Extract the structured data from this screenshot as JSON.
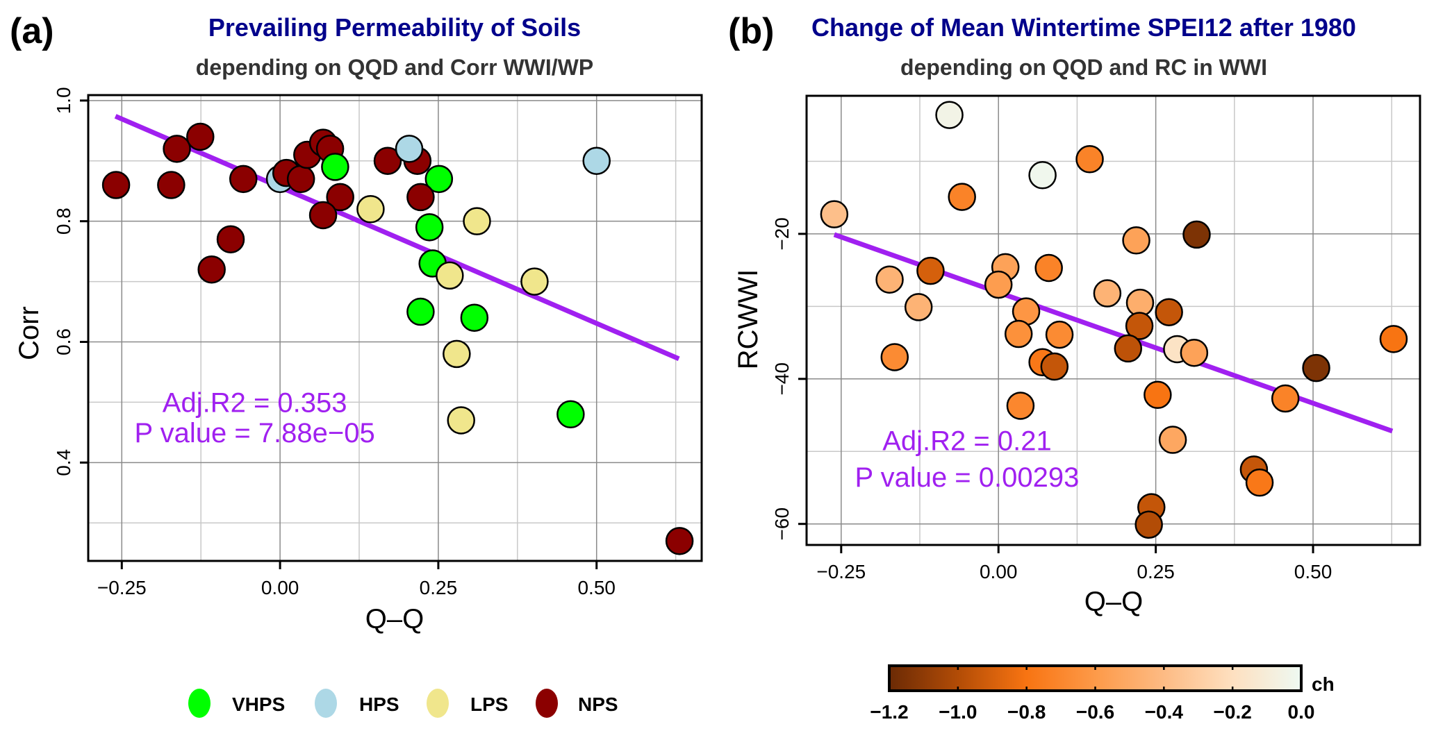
{
  "chart_data": [
    {
      "type": "scatter",
      "panel_label": "(a)",
      "title": "Prevailing Permeability of Soils",
      "subtitle": "depending on QQD and Corr WWI/WP",
      "xlabel": "Q–Q",
      "ylabel": "Corr",
      "xlim": [
        -0.303,
        0.666
      ],
      "ylim": [
        0.237,
        1.009
      ],
      "xticks": [
        -0.25,
        0.0,
        0.25,
        0.5
      ],
      "xtick_labels": [
        "−0.25",
        "0.00",
        "0.25",
        "0.50"
      ],
      "xgrid_minor": [
        -0.125,
        0.125,
        0.375,
        0.625
      ],
      "yticks": [
        0.4,
        0.6,
        0.8,
        1.0
      ],
      "ytick_labels": [
        "0.4",
        "0.6",
        "0.8",
        "1.0"
      ],
      "ygrid_minor": [
        0.3,
        0.5,
        0.7,
        0.9
      ],
      "grid": true,
      "regression": {
        "x": [
          -0.26,
          0.63
        ],
        "y": [
          0.974,
          0.572
        ],
        "color": "#a020f0"
      },
      "annotations": [
        "Adj.R2 = 0.353",
        "P value = 7.88e−05"
      ],
      "annotation_anchor": {
        "x": -0.04,
        "y": [
          0.5,
          0.45
        ]
      },
      "legend": {
        "placement": "bottom",
        "entries": [
          {
            "label": "VHPS",
            "color": "#00ff00"
          },
          {
            "label": "HPS",
            "color": "#add8e6"
          },
          {
            "label": "LPS",
            "color": "#f0e68c"
          },
          {
            "label": "NPS",
            "color": "#8b0000"
          }
        ]
      },
      "series": [
        {
          "name": "NPS",
          "color": "#8b0000",
          "points": [
            [
              -0.259,
              0.86
            ],
            [
              -0.172,
              0.86
            ],
            [
              -0.163,
              0.92
            ],
            [
              -0.126,
              0.94
            ],
            [
              -0.058,
              0.87
            ],
            [
              -0.078,
              0.77
            ],
            [
              -0.108,
              0.72
            ],
            [
              0.01,
              0.88
            ],
            [
              0.033,
              0.87
            ],
            [
              0.043,
              0.91
            ],
            [
              0.068,
              0.93
            ],
            [
              0.079,
              0.92
            ],
            [
              0.095,
              0.84
            ],
            [
              0.068,
              0.81
            ],
            [
              0.17,
              0.9
            ],
            [
              0.217,
              0.9
            ],
            [
              0.222,
              0.84
            ],
            [
              0.631,
              0.27
            ]
          ]
        },
        {
          "name": "HPS",
          "color": "#add8e6",
          "points": [
            [
              0.0,
              0.87
            ],
            [
              0.204,
              0.92
            ],
            [
              0.5,
              0.9
            ]
          ]
        },
        {
          "name": "LPS",
          "color": "#f0e68c",
          "points": [
            [
              0.143,
              0.82
            ],
            [
              0.311,
              0.8
            ],
            [
              0.268,
              0.71
            ],
            [
              0.402,
              0.7
            ],
            [
              0.279,
              0.58
            ],
            [
              0.286,
              0.47
            ]
          ]
        },
        {
          "name": "VHPS",
          "color": "#00ff00",
          "points": [
            [
              0.087,
              0.89
            ],
            [
              0.251,
              0.87
            ],
            [
              0.236,
              0.79
            ],
            [
              0.241,
              0.73
            ],
            [
              0.222,
              0.65
            ],
            [
              0.307,
              0.64
            ],
            [
              0.459,
              0.48
            ]
          ]
        }
      ],
      "draw_order": [
        [
          0,
          0
        ],
        [
          0,
          1
        ],
        [
          0,
          2
        ],
        [
          0,
          3
        ],
        [
          0,
          4
        ],
        [
          0,
          5
        ],
        [
          0,
          6
        ],
        [
          1,
          0
        ],
        [
          0,
          7
        ],
        [
          0,
          8
        ],
        [
          0,
          9
        ],
        [
          0,
          10
        ],
        [
          0,
          11
        ],
        [
          3,
          0
        ],
        [
          0,
          12
        ],
        [
          0,
          13
        ],
        [
          2,
          0
        ],
        [
          0,
          14
        ],
        [
          0,
          15
        ],
        [
          1,
          1
        ],
        [
          3,
          1
        ],
        [
          0,
          16
        ],
        [
          3,
          2
        ],
        [
          2,
          1
        ],
        [
          3,
          3
        ],
        [
          2,
          2
        ],
        [
          2,
          3
        ],
        [
          0,
          17
        ],
        [
          3,
          4
        ],
        [
          3,
          5
        ],
        [
          2,
          4
        ],
        [
          2,
          5
        ],
        [
          3,
          6
        ],
        [
          1,
          2
        ]
      ]
    },
    {
      "type": "scatter",
      "panel_label": "(b)",
      "title": "Change of Mean Wintertime SPEI12 after 1980",
      "subtitle": "depending on QQD and RC in WWI",
      "xlabel": "Q–Q",
      "ylabel": "RCWWI",
      "xlim": [
        -0.305,
        0.67
      ],
      "ylim": [
        -62.9,
        -0.96
      ],
      "xticks": [
        -0.25,
        0.0,
        0.25,
        0.5
      ],
      "xtick_labels": [
        "−0.25",
        "0.00",
        "0.25",
        "0.50"
      ],
      "xgrid_minor": [
        -0.125,
        0.125,
        0.375,
        0.625
      ],
      "yticks": [
        -60,
        -40,
        -20
      ],
      "ytick_labels": [
        "−60",
        "−40",
        "−20"
      ],
      "ygrid_minor": [
        -50,
        -30,
        -10
      ],
      "grid": true,
      "regression": {
        "x": [
          -0.261,
          0.626
        ],
        "y": [
          -20.1,
          -47.2
        ],
        "color": "#a020f0"
      },
      "annotations": [
        "Adj.R2 = 0.21",
        "P value = 0.00293"
      ],
      "annotation_anchor": {
        "x": -0.05,
        "y": [
          -48.5,
          -53.5
        ]
      },
      "colorbar": {
        "label": "ch",
        "range": [
          -1.2,
          0.0
        ],
        "tick_values": [
          -1.2,
          -1.0,
          -0.8,
          -0.6,
          -0.4,
          -0.2,
          0.0
        ],
        "tick_labels": [
          "−1.2",
          "−1.0",
          "−0.8",
          "−0.6",
          "−0.4",
          "−0.2",
          "0.0"
        ],
        "stops": [
          {
            "v": -1.2,
            "color": "#6b2a05"
          },
          {
            "v": -1.0,
            "color": "#b24c06"
          },
          {
            "v": -0.8,
            "color": "#f87412"
          },
          {
            "v": -0.6,
            "color": "#fd9a49"
          },
          {
            "v": -0.4,
            "color": "#fdbb84"
          },
          {
            "v": -0.2,
            "color": "#fee0c0"
          },
          {
            "v": 0.0,
            "color": "#eef9f2"
          }
        ]
      },
      "points": [
        {
          "x": -0.078,
          "y": -3.6,
          "ch": -0.05
        },
        {
          "x": 0.07,
          "y": -11.9,
          "ch": -0.02
        },
        {
          "x": 0.145,
          "y": -9.7,
          "ch": -0.72
        },
        {
          "x": -0.058,
          "y": -14.9,
          "ch": -0.72
        },
        {
          "x": -0.261,
          "y": -17.3,
          "ch": -0.38
        },
        {
          "x": 0.315,
          "y": -20.1,
          "ch": -1.15
        },
        {
          "x": 0.219,
          "y": -20.9,
          "ch": -0.55
        },
        {
          "x": -0.108,
          "y": -25.1,
          "ch": -0.9
        },
        {
          "x": -0.173,
          "y": -26.3,
          "ch": -0.45
        },
        {
          "x": 0.011,
          "y": -24.6,
          "ch": -0.55
        },
        {
          "x": 0.0,
          "y": -27.0,
          "ch": -0.58
        },
        {
          "x": 0.08,
          "y": -24.7,
          "ch": -0.72
        },
        {
          "x": 0.173,
          "y": -28.2,
          "ch": -0.45
        },
        {
          "x": 0.225,
          "y": -29.5,
          "ch": -0.48
        },
        {
          "x": -0.127,
          "y": -30.1,
          "ch": -0.45
        },
        {
          "x": 0.044,
          "y": -30.7,
          "ch": -0.62
        },
        {
          "x": 0.271,
          "y": -30.8,
          "ch": -0.95
        },
        {
          "x": 0.224,
          "y": -32.7,
          "ch": -0.95
        },
        {
          "x": 0.032,
          "y": -33.8,
          "ch": -0.65
        },
        {
          "x": 0.097,
          "y": -33.9,
          "ch": -0.68
        },
        {
          "x": 0.206,
          "y": -35.8,
          "ch": -0.97
        },
        {
          "x": 0.284,
          "y": -35.9,
          "ch": -0.18
        },
        {
          "x": 0.311,
          "y": -36.4,
          "ch": -0.55
        },
        {
          "x": -0.165,
          "y": -37.0,
          "ch": -0.68
        },
        {
          "x": 0.07,
          "y": -37.7,
          "ch": -0.78
        },
        {
          "x": 0.089,
          "y": -38.3,
          "ch": -0.95
        },
        {
          "x": 0.505,
          "y": -38.5,
          "ch": -1.15
        },
        {
          "x": 0.628,
          "y": -34.5,
          "ch": -0.8
        },
        {
          "x": 0.253,
          "y": -42.2,
          "ch": -0.8
        },
        {
          "x": 0.456,
          "y": -42.7,
          "ch": -0.72
        },
        {
          "x": 0.035,
          "y": -43.7,
          "ch": -0.7
        },
        {
          "x": 0.277,
          "y": -48.4,
          "ch": -0.52
        },
        {
          "x": 0.406,
          "y": -52.5,
          "ch": -0.95
        },
        {
          "x": 0.415,
          "y": -54.3,
          "ch": -0.78
        },
        {
          "x": 0.243,
          "y": -57.7,
          "ch": -0.95
        },
        {
          "x": 0.239,
          "y": -60.1,
          "ch": -1.0
        }
      ]
    }
  ]
}
